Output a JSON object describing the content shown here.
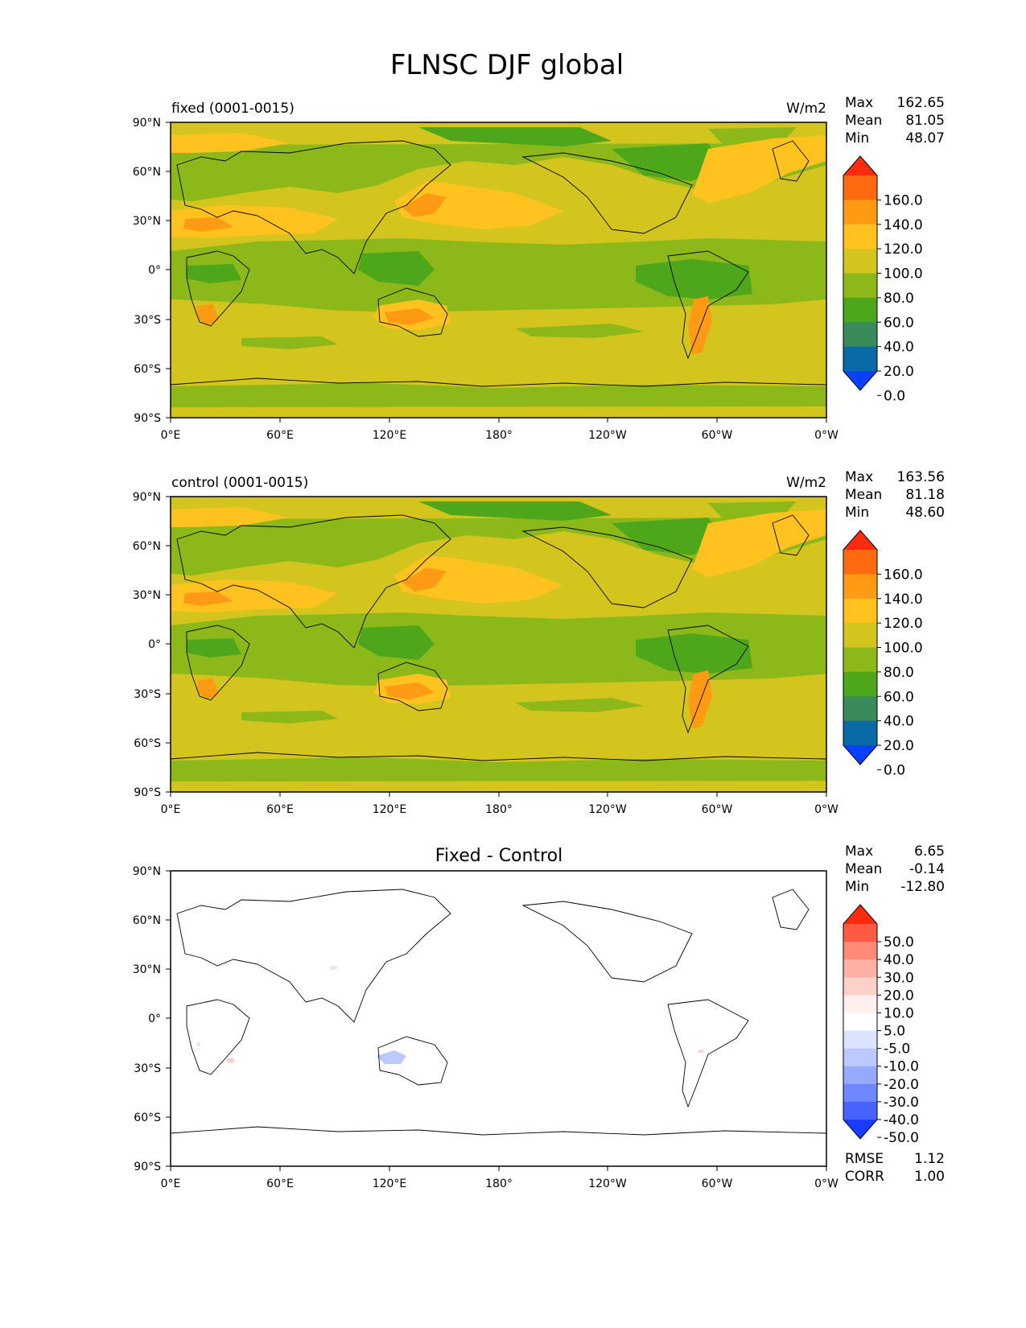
{
  "title": "FLNSC DJF global",
  "lat_ticks": [
    "90°N",
    "60°N",
    "30°N",
    "0°",
    "30°S",
    "60°S",
    "90°S"
  ],
  "lon_ticks": [
    "0°E",
    "60°E",
    "120°E",
    "180°",
    "120°W",
    "60°W",
    "0°W"
  ],
  "panels": [
    {
      "name": "fixed",
      "left_title": "fixed (0001-0015)",
      "right_title": "W/m2",
      "center_title": "",
      "stats": [
        {
          "label": "Max",
          "value": "162.65"
        },
        {
          "label": "Mean",
          "value": "81.05"
        },
        {
          "label": "Min",
          "value": "48.07"
        }
      ],
      "colorbar": {
        "labels": [
          "160.0",
          "140.0",
          "120.0",
          "100.0",
          "80.0",
          "60.0",
          "40.0",
          "20.0",
          "0.0"
        ],
        "colors": [
          "#ff2b0f",
          "#ff6a10",
          "#ff9a14",
          "#ffc21e",
          "#d4c41e",
          "#8cb81a",
          "#4ea61a",
          "#3a8a5a",
          "#0a6aa8",
          "#0a40ff"
        ]
      },
      "footer_stats": []
    },
    {
      "name": "control",
      "left_title": "control (0001-0015)",
      "right_title": "W/m2",
      "center_title": "",
      "stats": [
        {
          "label": "Max",
          "value": "163.56"
        },
        {
          "label": "Mean",
          "value": "81.18"
        },
        {
          "label": "Min",
          "value": "48.60"
        }
      ],
      "colorbar": {
        "labels": [
          "160.0",
          "140.0",
          "120.0",
          "100.0",
          "80.0",
          "60.0",
          "40.0",
          "20.0",
          "0.0"
        ],
        "colors": [
          "#ff2b0f",
          "#ff6a10",
          "#ff9a14",
          "#ffc21e",
          "#d4c41e",
          "#8cb81a",
          "#4ea61a",
          "#3a8a5a",
          "#0a6aa8",
          "#0a40ff"
        ]
      },
      "footer_stats": []
    },
    {
      "name": "diff",
      "left_title": "",
      "right_title": "",
      "center_title": "Fixed - Control",
      "stats": [
        {
          "label": "Max",
          "value": "6.65"
        },
        {
          "label": "Mean",
          "value": "-0.14"
        },
        {
          "label": "Min",
          "value": "-12.80"
        }
      ],
      "colorbar": {
        "labels": [
          "50.0",
          "40.0",
          "30.0",
          "20.0",
          "10.0",
          "5.0",
          "-5.0",
          "-10.0",
          "-20.0",
          "-30.0",
          "-40.0",
          "-50.0"
        ],
        "colors": [
          "#ff2a10",
          "#ff5a44",
          "#ff8a78",
          "#ffb0a2",
          "#ffd0c8",
          "#fff0ee",
          "#ffffff",
          "#dde4ff",
          "#bcc9ff",
          "#96a9ff",
          "#6f87ff",
          "#4862ff",
          "#1a3cff"
        ]
      },
      "footer_stats": [
        {
          "label": "RMSE",
          "value": "1.12"
        },
        {
          "label": "CORR",
          "value": "1.00"
        }
      ]
    }
  ]
}
